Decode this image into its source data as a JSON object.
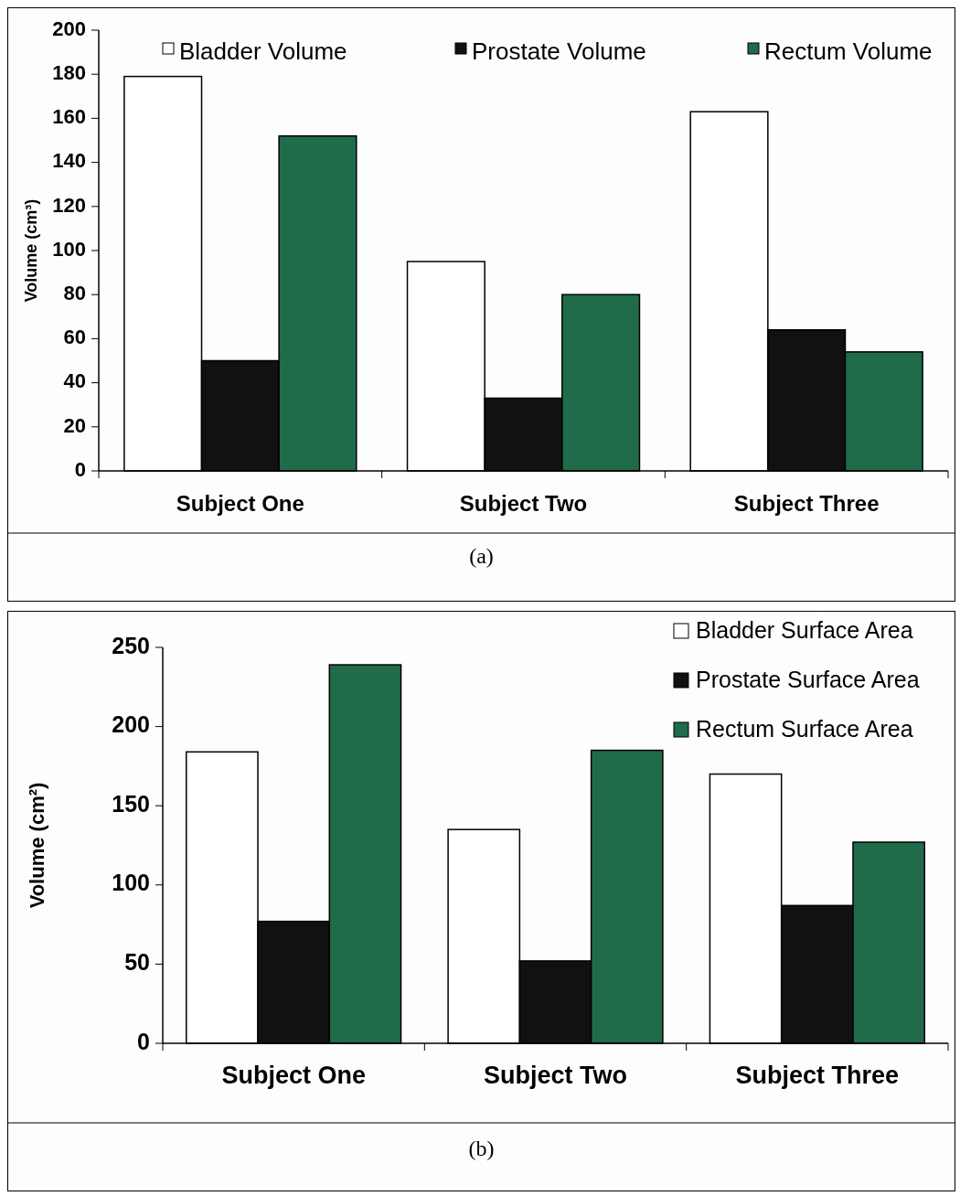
{
  "chart_data": [
    {
      "type": "bar",
      "ylabel": "Volume (cm³)",
      "categories": [
        "Subject One",
        "Subject Two",
        "Subject Three"
      ],
      "series": [
        {
          "name": "Bladder Volume",
          "color": "#ffffff",
          "values": [
            179,
            95,
            163
          ]
        },
        {
          "name": "Prostate Volume",
          "color": "#111111",
          "values": [
            50,
            33,
            64
          ]
        },
        {
          "name": "Rectum Volume",
          "color": "#1f6b4a",
          "values": [
            152,
            80,
            54
          ]
        }
      ],
      "ylim": [
        0,
        200
      ],
      "yticks": [
        0,
        20,
        40,
        60,
        80,
        100,
        120,
        140,
        160,
        180,
        200
      ],
      "grid": false,
      "legend": "top",
      "annotations": [
        "(a)"
      ]
    },
    {
      "type": "bar",
      "ylabel": "Volume (cm²)",
      "categories": [
        "Subject One",
        "Subject Two",
        "Subject Three"
      ],
      "series": [
        {
          "name": "Bladder Surface Area",
          "color": "#ffffff",
          "values": [
            184,
            135,
            170
          ]
        },
        {
          "name": "Prostate Surface Area",
          "color": "#111111",
          "values": [
            77,
            52,
            87
          ]
        },
        {
          "name": "Rectum Surface Area",
          "color": "#1f6b4a",
          "values": [
            239,
            185,
            127
          ]
        }
      ],
      "ylim": [
        0,
        250
      ],
      "yticks": [
        0,
        50,
        100,
        150,
        200,
        250
      ],
      "grid": false,
      "legend": "top right",
      "annotations": [
        "(b)"
      ]
    }
  ]
}
